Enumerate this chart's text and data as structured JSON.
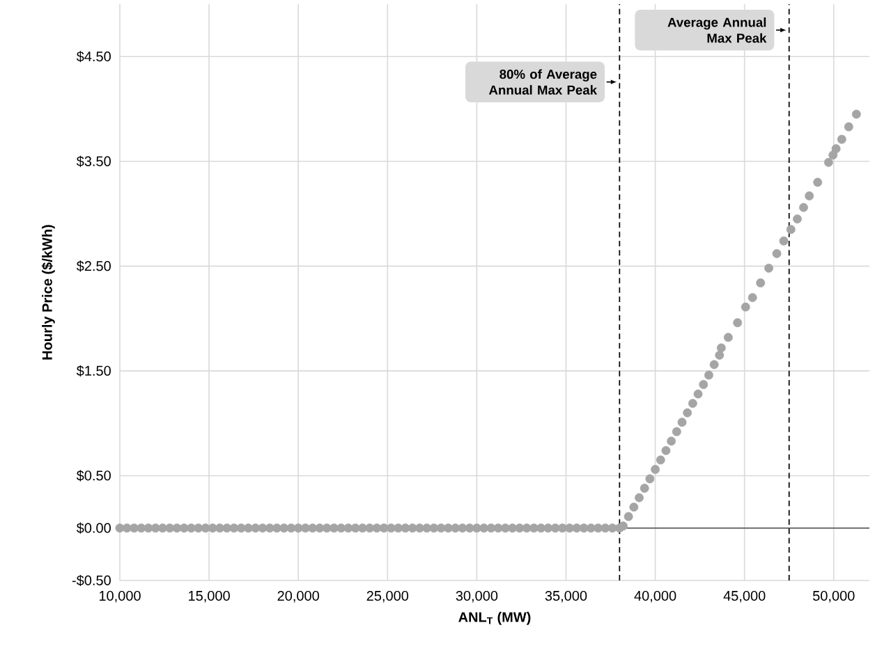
{
  "chart_data": {
    "type": "scatter",
    "xlabel": "ANL$_{T}$ (MW)",
    "ylabel": "Hourly Price ($/kWh)",
    "xlim": [
      10000,
      52000
    ],
    "ylim": [
      -0.5,
      5
    ],
    "xticks": [
      {
        "value": 10000,
        "label": "10,000"
      },
      {
        "value": 15000,
        "label": "15,000"
      },
      {
        "value": 20000,
        "label": "20,000"
      },
      {
        "value": 25000,
        "label": "25,000"
      },
      {
        "value": 30000,
        "label": "30,000"
      },
      {
        "value": 35000,
        "label": "35,000"
      },
      {
        "value": 40000,
        "label": "40,000"
      },
      {
        "value": 45000,
        "label": "45,000"
      },
      {
        "value": 50000,
        "label": "50,000"
      }
    ],
    "yticks": [
      {
        "value": -0.5,
        "label": "-$0.50"
      },
      {
        "value": 0,
        "label": "$0.00"
      },
      {
        "value": 0.5,
        "label": "$0.50"
      },
      {
        "value": 1.5,
        "label": "$1.50"
      },
      {
        "value": 2.5,
        "label": "$2.50"
      },
      {
        "value": 3.5,
        "label": "$3.50"
      },
      {
        "value": 4.5,
        "label": "$4.50"
      }
    ],
    "grid": true,
    "marker": "circle",
    "series": [
      {
        "color": "#a5a5a5",
        "x": [
          10000,
          10400,
          10800,
          11200,
          11600,
          12000,
          12400,
          12800,
          13200,
          13600,
          14000,
          14400,
          14800,
          15200,
          15600,
          16000,
          16400,
          16800,
          17200,
          17600,
          18000,
          18400,
          18800,
          19200,
          19600,
          20000,
          20400,
          20800,
          21200,
          21600,
          22000,
          22400,
          22800,
          23200,
          23600,
          24000,
          24400,
          24800,
          25200,
          25600,
          26000,
          26400,
          26800,
          27200,
          27600,
          28000,
          28400,
          28800,
          29200,
          29600,
          30000,
          30400,
          30800,
          31200,
          31600,
          32000,
          32400,
          32800,
          33200,
          33600,
          34000,
          34400,
          34800,
          35200,
          35600,
          36000,
          36400,
          36800,
          37200,
          37600,
          38000,
          38200,
          38500,
          38800,
          39100,
          39400,
          39700,
          40000,
          40300,
          40600,
          40900,
          41200,
          41500,
          41800,
          42100,
          42400,
          42700,
          43000,
          43300,
          43600,
          43700,
          44090,
          44610,
          45060,
          45450,
          45900,
          46360,
          46810,
          47200,
          47600,
          47960,
          48310,
          48630,
          49100,
          49710,
          49960,
          50130,
          50450,
          50840,
          51270
        ],
        "values": [
          0,
          0,
          0,
          0,
          0,
          0,
          0,
          0,
          0,
          0,
          0,
          0,
          0,
          0,
          0,
          0,
          0,
          0,
          0,
          0,
          0,
          0,
          0,
          0,
          0,
          0,
          0,
          0,
          0,
          0,
          0,
          0,
          0,
          0,
          0,
          0,
          0,
          0,
          0,
          0,
          0,
          0,
          0,
          0,
          0,
          0,
          0,
          0,
          0,
          0,
          0,
          0,
          0,
          0,
          0,
          0,
          0,
          0,
          0,
          0,
          0,
          0,
          0,
          0,
          0,
          0,
          0,
          0,
          0,
          0,
          0,
          0.02,
          0.11,
          0.2,
          0.29,
          0.38,
          0.47,
          0.56,
          0.65,
          0.74,
          0.83,
          0.92,
          1.01,
          1.1,
          1.19,
          1.28,
          1.37,
          1.46,
          1.56,
          1.65,
          1.72,
          1.82,
          1.96,
          2.11,
          2.2,
          2.34,
          2.48,
          2.62,
          2.74,
          2.85,
          2.95,
          3.06,
          3.17,
          3.3,
          3.49,
          3.56,
          3.62,
          3.71,
          3.83,
          3.95
        ]
      }
    ],
    "ref_lines": [
      {
        "axis": "y",
        "value": 0,
        "color": "#000000",
        "line_style": "solid"
      },
      {
        "axis": "x",
        "value": 38000,
        "label": "80% of Average Annual Max Peak",
        "color": "#000000",
        "line_style": "dashed"
      },
      {
        "axis": "x",
        "value": 47500,
        "label": "Average Annual Max Peak",
        "color": "#000000",
        "line_style": "dashed"
      }
    ]
  }
}
